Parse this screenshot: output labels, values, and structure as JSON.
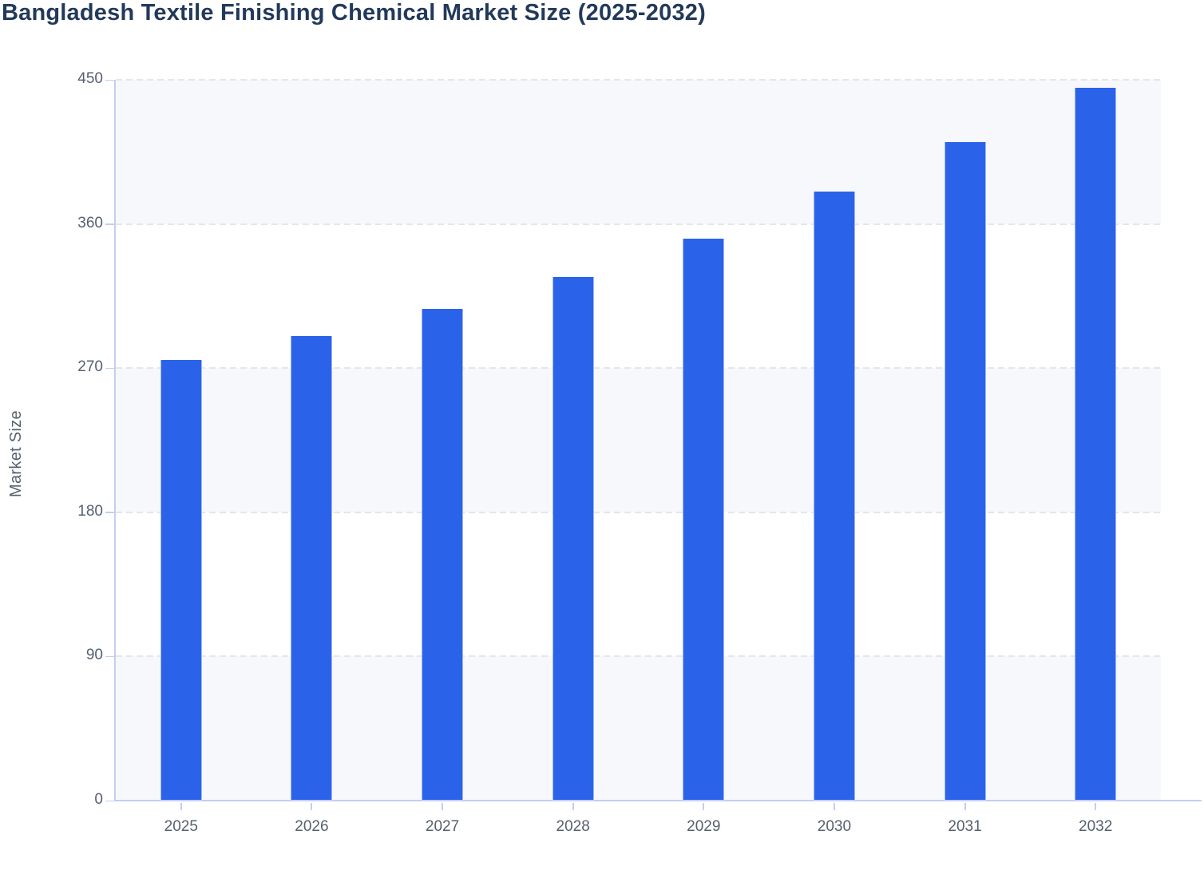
{
  "header": {
    "title": "Bangladesh Textile Finishing Chemical Market Size (2025-2032)"
  },
  "chart_data": {
    "type": "bar",
    "title": "Bangladesh Textile Finishing Chemical Market Size (2025-2032)",
    "xlabel": "",
    "ylabel": "Market Size",
    "categories": [
      "2025",
      "2026",
      "2027",
      "2028",
      "2029",
      "2030",
      "2031",
      "2032"
    ],
    "values": [
      275,
      290,
      307,
      327,
      351,
      380,
      411,
      445
    ],
    "ylim": [
      0,
      450
    ],
    "yticks": [
      0,
      90,
      180,
      270,
      360,
      450
    ],
    "grid": "horizontal-dashed",
    "bands": "alternating-horizontal",
    "legend_position": "none",
    "colors": {
      "bar": "#2a63ea",
      "bar_edge": "#a3b7f3",
      "title_text": "#22395a",
      "tick_text": "#57606e",
      "axis_line": "#c6cdf1",
      "gridline": "#e4e6ec",
      "band": "#f6f8fb",
      "background": "#ffffff"
    }
  }
}
